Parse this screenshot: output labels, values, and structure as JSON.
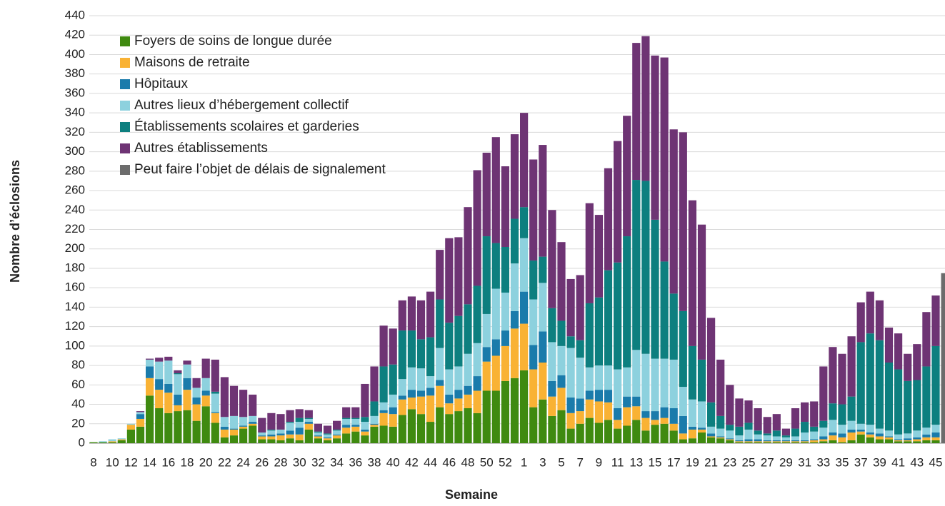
{
  "chart_data": {
    "type": "stacked_bar",
    "x_label": "Semaine",
    "y_label": "Nombre d’éclosions",
    "categories": [
      "8",
      null,
      "10",
      null,
      "12",
      null,
      "14",
      null,
      "16",
      null,
      "18",
      null,
      "20",
      null,
      "22",
      null,
      "24",
      null,
      "26",
      null,
      "28",
      null,
      "30",
      null,
      "32",
      null,
      "34",
      null,
      "36",
      null,
      "38",
      null,
      "40",
      null,
      "42",
      null,
      "44",
      null,
      "46",
      null,
      "48",
      null,
      "50",
      null,
      "52",
      null,
      "1",
      null,
      "3",
      null,
      "5",
      null,
      "7",
      null,
      "9",
      null,
      "11",
      null,
      "13",
      null,
      "15",
      null,
      "17",
      null,
      "19",
      null,
      "21",
      null,
      "23",
      null,
      "25",
      null,
      "27",
      null,
      "29",
      null,
      "31",
      null,
      "33",
      null,
      "35",
      null,
      "37",
      null,
      "39",
      null,
      "41",
      null,
      "43",
      null,
      "45",
      null
    ],
    "series": [
      {
        "name": "Foyers de soins de longue durée",
        "color": "#3f8a10",
        "values": [
          1,
          1,
          1,
          3,
          14,
          17,
          49,
          36,
          31,
          33,
          34,
          23,
          38,
          21,
          6,
          8,
          15,
          18,
          4,
          4,
          3,
          5,
          3,
          14,
          5,
          3,
          5,
          10,
          12,
          8,
          17,
          18,
          17,
          29,
          35,
          30,
          22,
          37,
          30,
          33,
          36,
          31,
          54,
          54,
          64,
          67,
          75,
          37,
          45,
          28,
          34,
          15,
          20,
          26,
          21,
          24,
          15,
          18,
          24,
          13,
          19,
          20,
          13,
          4,
          5,
          11,
          6,
          5,
          3,
          1,
          1,
          1,
          1,
          1,
          1,
          1,
          1,
          1,
          2,
          3,
          1,
          3,
          9,
          6,
          4,
          4,
          2,
          2,
          2,
          3,
          3,
          null
        ]
      },
      {
        "name": "Maisons de retraite",
        "color": "#f9b234",
        "values": [
          0,
          0,
          1,
          1,
          5,
          8,
          18,
          19,
          21,
          6,
          21,
          17,
          11,
          10,
          8,
          6,
          2,
          2,
          3,
          3,
          5,
          4,
          6,
          6,
          2,
          2,
          3,
          6,
          5,
          4,
          2,
          13,
          13,
          16,
          12,
          18,
          27,
          22,
          11,
          13,
          14,
          23,
          30,
          36,
          36,
          51,
          48,
          39,
          38,
          20,
          23,
          16,
          13,
          19,
          22,
          18,
          9,
          19,
          14,
          13,
          5,
          6,
          7,
          6,
          9,
          3,
          1,
          1,
          1,
          1,
          1,
          1,
          1,
          1,
          1,
          1,
          1,
          2,
          2,
          5,
          5,
          8,
          3,
          3,
          3,
          2,
          1,
          1,
          2,
          3,
          3,
          null
        ]
      },
      {
        "name": "Hôpitaux",
        "color": "#1a7bab",
        "values": [
          0,
          0,
          0,
          0,
          0,
          5,
          12,
          11,
          9,
          11,
          12,
          7,
          5,
          1,
          3,
          1,
          1,
          2,
          1,
          2,
          2,
          4,
          7,
          2,
          1,
          1,
          1,
          3,
          2,
          2,
          1,
          3,
          7,
          4,
          8,
          6,
          8,
          6,
          9,
          9,
          9,
          15,
          15,
          17,
          16,
          18,
          33,
          25,
          32,
          16,
          13,
          16,
          13,
          9,
          12,
          13,
          12,
          11,
          10,
          7,
          9,
          11,
          16,
          18,
          3,
          2,
          3,
          1,
          1,
          1,
          2,
          2,
          1,
          1,
          1,
          1,
          1,
          1,
          3,
          3,
          4,
          3,
          2,
          2,
          3,
          1,
          1,
          2,
          2,
          3,
          5,
          null
        ]
      },
      {
        "name": "Autres lieux d’hébergement collectif",
        "color": "#8dd1de",
        "values": [
          0,
          1,
          2,
          1,
          1,
          2,
          7,
          18,
          24,
          21,
          14,
          10,
          13,
          19,
          10,
          13,
          9,
          6,
          3,
          4,
          4,
          8,
          6,
          3,
          3,
          3,
          4,
          6,
          6,
          8,
          8,
          8,
          13,
          17,
          23,
          23,
          12,
          33,
          26,
          24,
          33,
          34,
          34,
          52,
          39,
          49,
          55,
          47,
          50,
          40,
          30,
          51,
          42,
          24,
          25,
          25,
          40,
          30,
          48,
          59,
          54,
          50,
          50,
          30,
          28,
          27,
          7,
          8,
          8,
          5,
          10,
          5,
          5,
          4,
          3,
          4,
          8,
          8,
          9,
          13,
          9,
          9,
          6,
          8,
          5,
          6,
          5,
          5,
          7,
          7,
          8,
          null
        ]
      },
      {
        "name": "Établissements scolaires et garderies",
        "color": "#0d7f7f",
        "values": [
          0,
          0,
          0,
          0,
          0,
          0,
          0,
          0,
          0,
          1,
          0,
          0,
          0,
          2,
          0,
          0,
          0,
          0,
          0,
          1,
          0,
          1,
          4,
          1,
          1,
          1,
          1,
          1,
          1,
          5,
          15,
          37,
          31,
          50,
          38,
          30,
          40,
          50,
          48,
          52,
          51,
          59,
          80,
          47,
          47,
          46,
          32,
          40,
          27,
          35,
          26,
          12,
          18,
          66,
          70,
          98,
          110,
          135,
          175,
          178,
          143,
          100,
          68,
          78,
          55,
          43,
          25,
          13,
          6,
          9,
          7,
          4,
          2,
          6,
          2,
          8,
          11,
          5,
          7,
          17,
          21,
          25,
          84,
          94,
          91,
          70,
          67,
          54,
          52,
          63,
          81,
          null
        ]
      },
      {
        "name": "Autres établissements",
        "color": "#6e3474",
        "values": [
          0,
          0,
          0,
          0,
          0,
          1,
          1,
          4,
          4,
          3,
          4,
          10,
          20,
          33,
          41,
          31,
          28,
          22,
          15,
          17,
          16,
          12,
          9,
          8,
          8,
          8,
          9,
          11,
          11,
          34,
          36,
          42,
          37,
          31,
          35,
          40,
          47,
          51,
          87,
          81,
          100,
          119,
          86,
          109,
          83,
          87,
          97,
          104,
          115,
          101,
          81,
          59,
          67,
          103,
          85,
          105,
          125,
          124,
          141,
          149,
          169,
          210,
          169,
          184,
          150,
          139,
          87,
          58,
          41,
          29,
          23,
          23,
          17,
          17,
          7,
          21,
          20,
          26,
          56,
          58,
          52,
          62,
          41,
          43,
          41,
          36,
          37,
          28,
          37,
          56,
          52,
          null
        ]
      },
      {
        "name": "Peut faire l’objet de délais de signalement",
        "color": "#6c6c6c",
        "values": [
          null,
          null,
          null,
          null,
          null,
          null,
          null,
          null,
          null,
          null,
          null,
          null,
          null,
          null,
          null,
          null,
          null,
          null,
          null,
          null,
          null,
          null,
          null,
          null,
          null,
          null,
          null,
          null,
          null,
          null,
          null,
          null,
          null,
          null,
          null,
          null,
          null,
          null,
          null,
          null,
          null,
          null,
          null,
          null,
          null,
          null,
          null,
          null,
          null,
          null,
          null,
          null,
          null,
          null,
          null,
          null,
          null,
          null,
          null,
          null,
          null,
          null,
          null,
          null,
          null,
          null,
          null,
          null,
          null,
          null,
          null,
          null,
          null,
          null,
          null,
          null,
          null,
          null,
          null,
          null,
          null,
          null,
          null,
          null,
          null,
          null,
          null,
          null,
          null,
          null,
          null,
          175
        ]
      }
    ],
    "ylim": [
      0,
      440
    ],
    "yticks": [
      0,
      20,
      40,
      60,
      80,
      100,
      120,
      140,
      160,
      180,
      200,
      220,
      240,
      260,
      280,
      300,
      320,
      340,
      360,
      380,
      400,
      420,
      440
    ],
    "grid": true,
    "legend": "top-left"
  }
}
